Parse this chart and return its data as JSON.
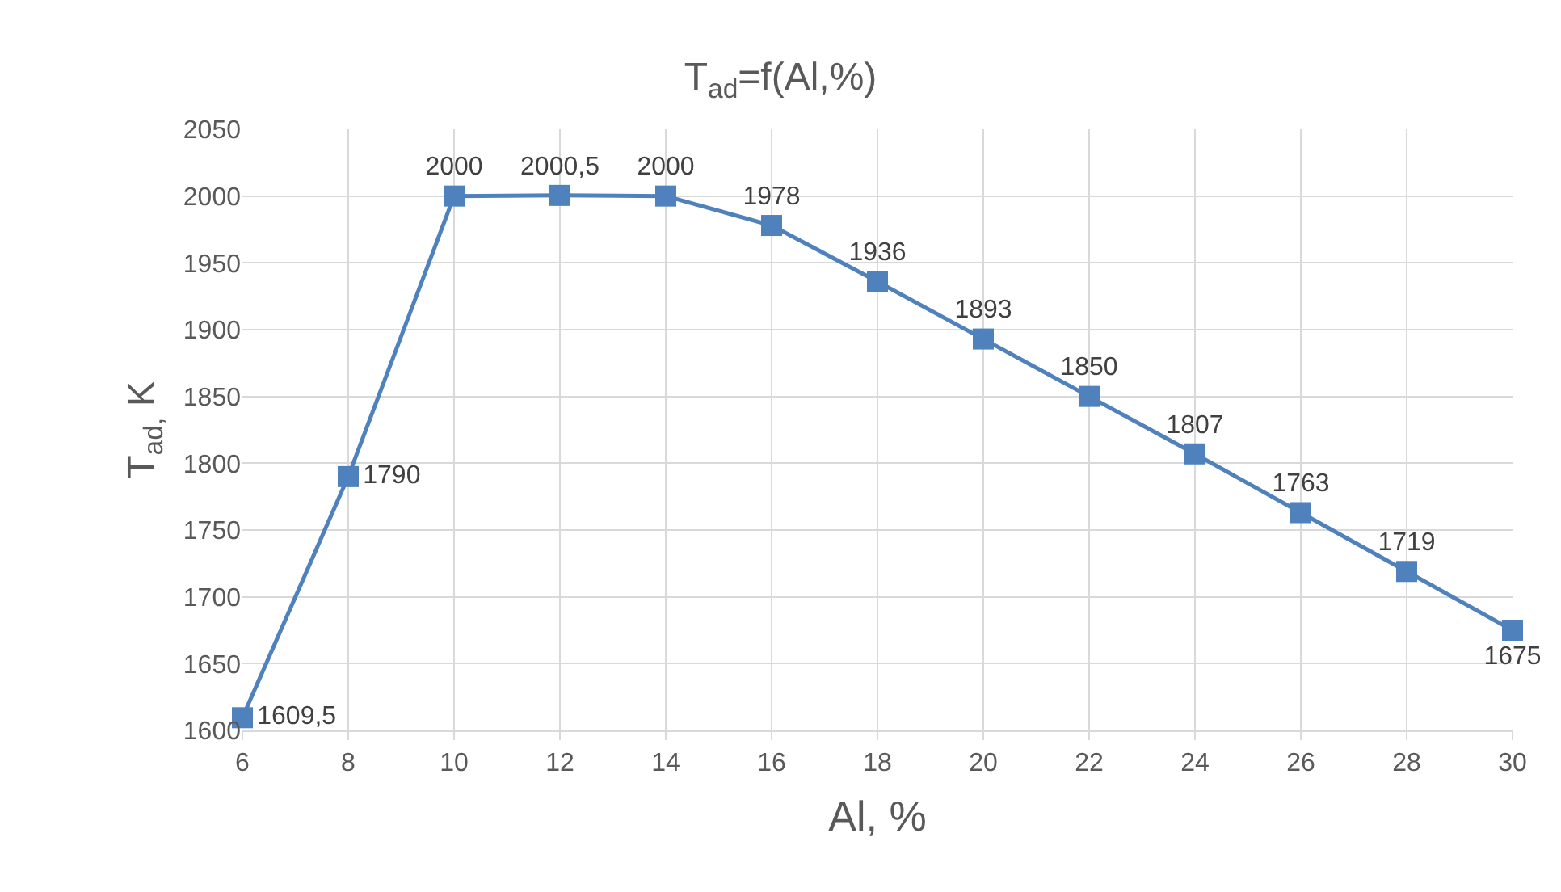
{
  "chart_data": {
    "type": "line",
    "title": "T$_{ad}$=f(Al,%)",
    "xlabel": "Al, %",
    "ylabel": "T$_{ad,}$ K",
    "x": [
      6,
      8,
      10,
      12,
      14,
      16,
      18,
      20,
      22,
      24,
      26,
      28,
      30
    ],
    "series": [
      {
        "color": "#4f81bd",
        "values": [
          1609.5,
          1790,
          2000,
          2000.5,
          2000,
          1978,
          1936,
          1893,
          1850,
          1807,
          1763,
          1719,
          1675
        ],
        "value_labels": [
          "1609,5",
          "1790",
          "2000",
          "2000,5",
          "2000",
          "1978",
          "1936",
          "1893",
          "1850",
          "1807",
          "1763",
          "1719",
          "1675"
        ]
      }
    ],
    "xlim": [
      6,
      30
    ],
    "xticks": [
      6,
      8,
      10,
      12,
      14,
      16,
      18,
      20,
      22,
      24,
      26,
      28,
      30
    ],
    "ylim": [
      1600,
      2050
    ],
    "yticks": [
      1600,
      1650,
      1700,
      1750,
      1800,
      1850,
      1900,
      1950,
      2000,
      2050
    ],
    "grid": true,
    "legend": false,
    "marker": "square",
    "line_style": "solid"
  }
}
